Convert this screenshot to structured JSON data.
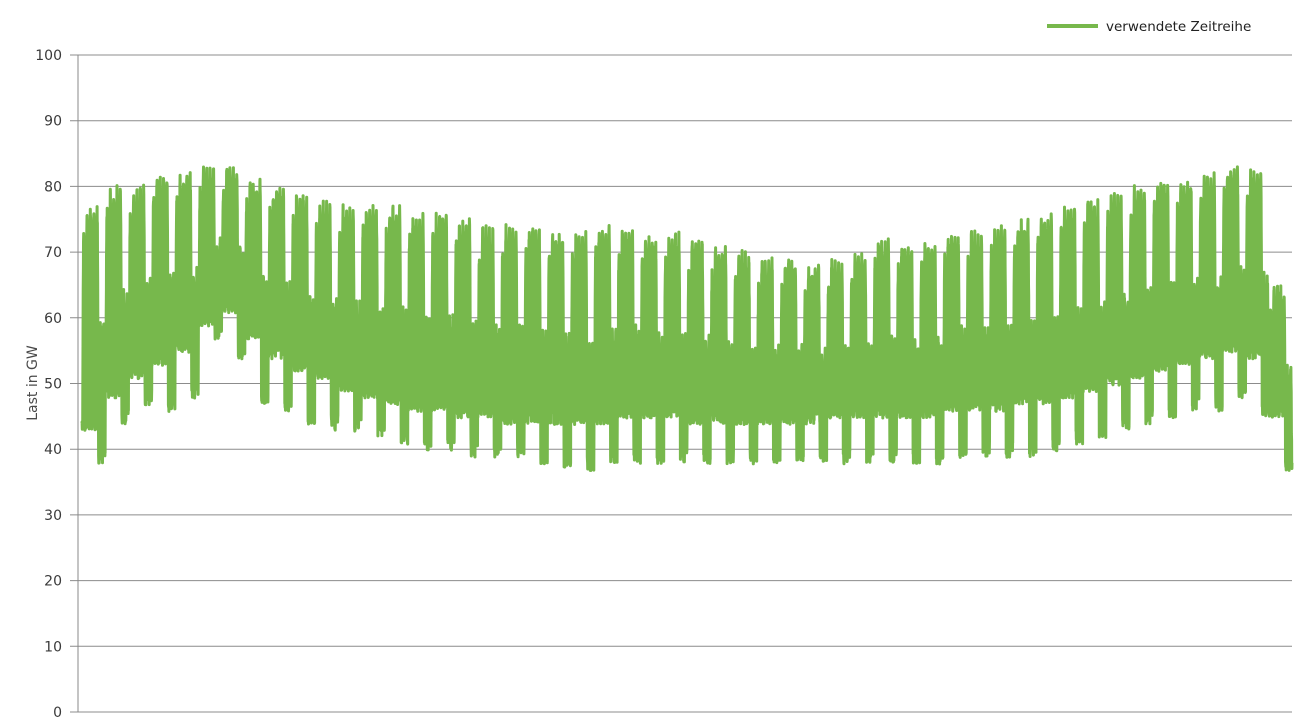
{
  "chart_data": {
    "type": "line",
    "title": "",
    "xlabel": "",
    "ylabel": "Last in GW",
    "ylim": [
      0,
      100
    ],
    "yticks": [
      0,
      10,
      20,
      30,
      40,
      50,
      60,
      70,
      80,
      90,
      100
    ],
    "grid": true,
    "legend_position": "top-right",
    "line_color": "#77b84c",
    "series": [
      {
        "name": "verwendete Zeitreihe",
        "description_points": "weekly envelope of hourly load: per-week [daily_peak_max, weekday_min, weekend_min]",
        "weekly_envelope": [
          [
            76,
            44,
            39
          ],
          [
            79,
            49,
            45
          ],
          [
            79,
            52,
            48
          ],
          [
            81,
            54,
            47
          ],
          [
            81,
            56,
            49
          ],
          [
            82,
            60,
            58
          ],
          [
            82,
            62,
            55
          ],
          [
            80,
            58,
            48
          ],
          [
            79,
            55,
            47
          ],
          [
            78,
            53,
            45
          ],
          [
            77,
            52,
            44
          ],
          [
            76,
            50,
            44
          ],
          [
            76,
            49,
            43
          ],
          [
            76,
            48,
            42
          ],
          [
            75,
            47,
            41
          ],
          [
            75,
            47,
            41
          ],
          [
            74,
            46,
            40
          ],
          [
            73,
            46,
            40
          ],
          [
            73,
            45,
            40
          ],
          [
            73,
            45,
            39
          ],
          [
            72,
            45,
            38
          ],
          [
            72,
            45,
            38
          ],
          [
            73,
            45,
            39
          ],
          [
            73,
            46,
            39
          ],
          [
            72,
            46,
            39
          ],
          [
            72,
            46,
            39
          ],
          [
            71,
            45,
            39
          ],
          [
            70,
            45,
            39
          ],
          [
            69,
            45,
            39
          ],
          [
            68,
            45,
            39
          ],
          [
            68,
            45,
            39
          ],
          [
            67,
            45,
            39
          ],
          [
            68,
            46,
            39
          ],
          [
            69,
            46,
            39
          ],
          [
            71,
            46,
            39
          ],
          [
            70,
            46,
            39
          ],
          [
            71,
            46,
            39
          ],
          [
            72,
            47,
            40
          ],
          [
            72,
            47,
            40
          ],
          [
            73,
            47,
            40
          ],
          [
            74,
            48,
            40
          ],
          [
            75,
            48,
            41
          ],
          [
            76,
            49,
            42
          ],
          [
            77,
            50,
            43
          ],
          [
            78,
            51,
            44
          ],
          [
            79,
            52,
            45
          ],
          [
            80,
            53,
            46
          ],
          [
            80,
            54,
            47
          ],
          [
            81,
            55,
            47
          ],
          [
            82,
            56,
            49
          ],
          [
            82,
            55,
            46
          ],
          [
            64,
            46,
            38
          ]
        ]
      }
    ]
  }
}
